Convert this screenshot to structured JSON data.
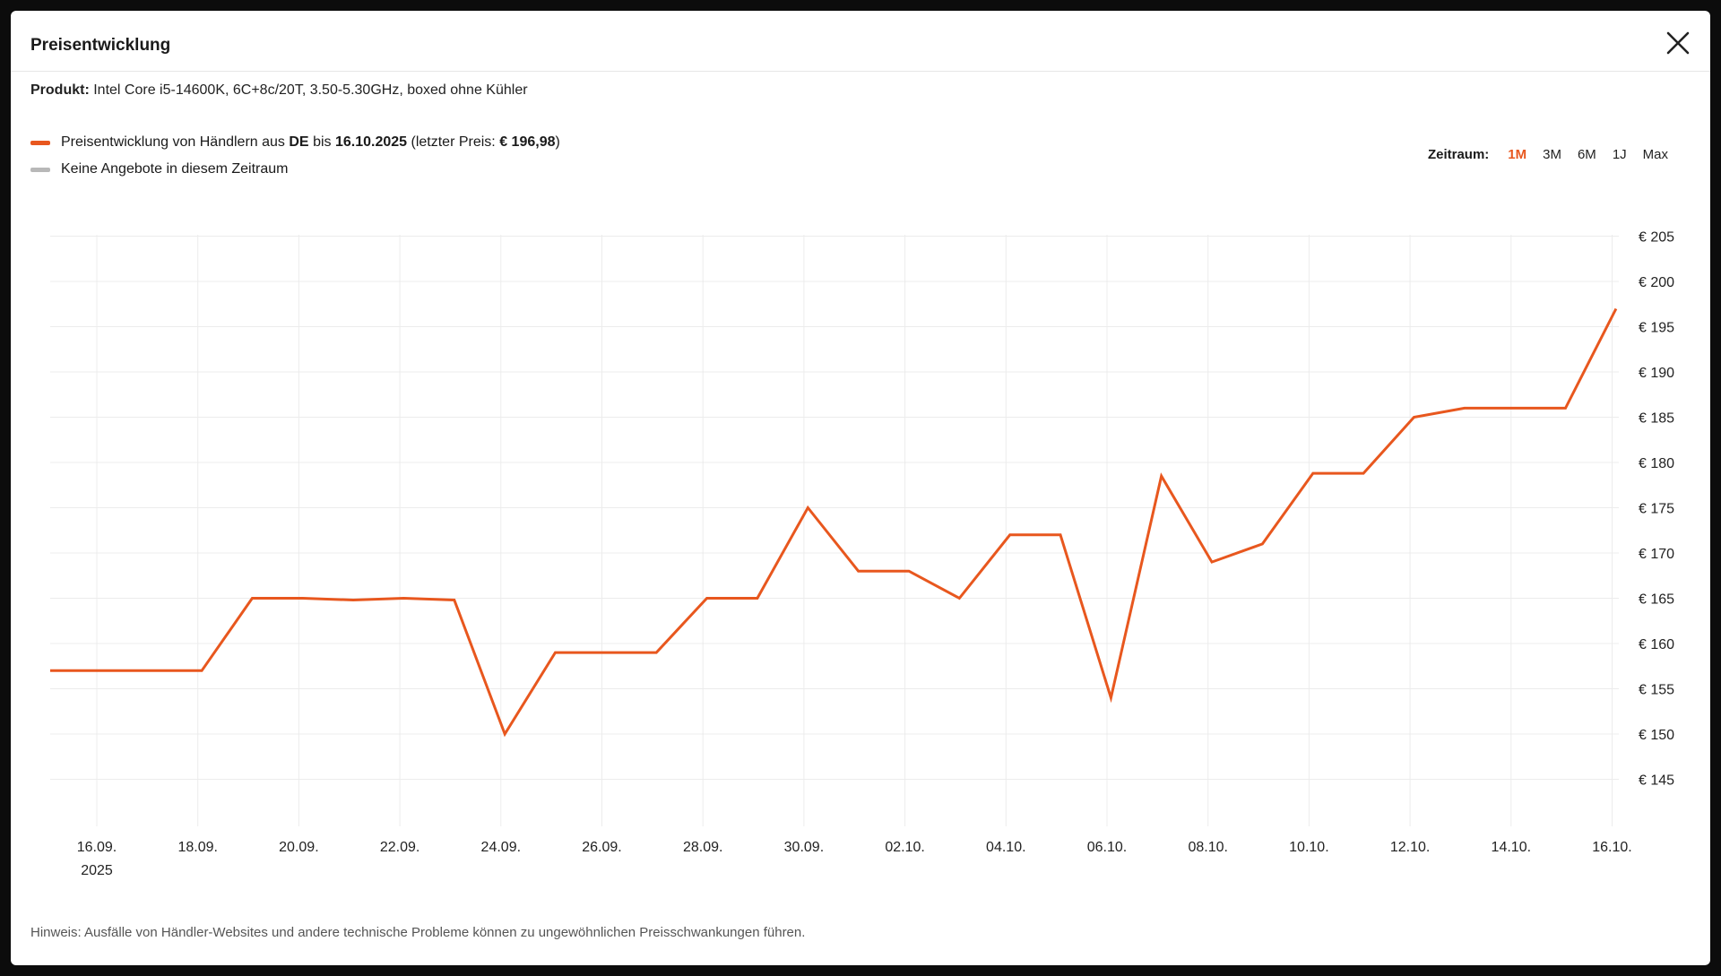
{
  "dialog": {
    "title": "Preisentwicklung",
    "close_icon": "close-icon"
  },
  "product": {
    "label": "Produkt:",
    "name": "Intel Core i5-14600K, 6C+8c/20T, 3.50-5.30GHz, boxed ohne Kühler"
  },
  "legend": {
    "series_prefix": "Preisentwicklung von Händlern aus",
    "country": "DE",
    "until": "bis",
    "date": "16.10.2025",
    "last_price_prefix": "(letzter Preis:",
    "last_price": "€ 196,98",
    "last_price_suffix": ")",
    "no_offers": "Keine Angebote in diesem Zeitraum",
    "series_color": "#e8571e",
    "no_offers_color": "#b8b8b8"
  },
  "zeitraum": {
    "label": "Zeitraum:",
    "options": [
      "1M",
      "3M",
      "6M",
      "1J",
      "Max"
    ],
    "active": "1M"
  },
  "note": "Hinweis: Ausfälle von Händler-Websites und andere technische Probleme können zu ungewöhnlichen Preisschwankungen führen.",
  "chart_data": {
    "type": "line",
    "currency": "€",
    "ylim": [
      140,
      206
    ],
    "y_ticks": [
      "€ 205",
      "€ 200",
      "€ 195",
      "€ 190",
      "€ 185",
      "€ 180",
      "€ 175",
      "€ 170",
      "€ 165",
      "€ 160",
      "€ 155",
      "€ 150",
      "€ 145"
    ],
    "y_tick_values": [
      205,
      200,
      195,
      190,
      185,
      180,
      175,
      170,
      165,
      160,
      155,
      150,
      145
    ],
    "x_ticks": [
      "16.09.",
      "18.09.",
      "20.09.",
      "22.09.",
      "24.09.",
      "26.09.",
      "28.09.",
      "30.09.",
      "02.10.",
      "04.10.",
      "06.10.",
      "08.10.",
      "10.10.",
      "12.10.",
      "14.10.",
      "16.10."
    ],
    "x_year_label": "2025",
    "grid": true,
    "series": [
      {
        "x": [
          "15.09.",
          "16.09.",
          "17.09.",
          "18.09.",
          "19.09.",
          "20.09.",
          "21.09.",
          "22.09.",
          "23.09.",
          "24.09.",
          "25.09.",
          "26.09.",
          "27.09.",
          "28.09.",
          "29.09.",
          "30.09.",
          "01.10.",
          "02.10.",
          "03.10.",
          "04.10.",
          "05.10.",
          "06.10.",
          "07.10.",
          "08.10.",
          "09.10.",
          "10.10.",
          "11.10.",
          "12.10.",
          "13.10.",
          "14.10.",
          "15.10.",
          "16.10."
        ],
        "values": [
          157,
          157,
          157,
          157,
          165,
          165,
          164.8,
          165,
          164.8,
          150,
          159,
          159,
          159,
          165,
          165,
          175,
          168,
          168,
          165,
          172,
          172,
          154,
          178.5,
          169,
          171,
          178.8,
          178.8,
          185,
          186,
          186,
          186,
          196.98
        ]
      }
    ]
  }
}
